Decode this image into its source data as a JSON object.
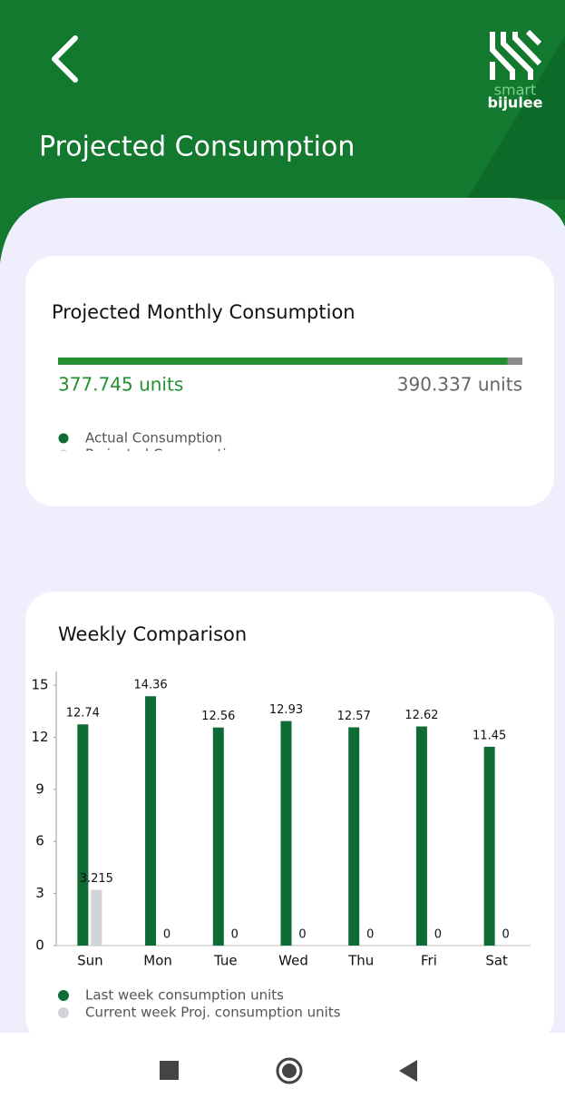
{
  "header": {
    "title": "Projected Consumption",
    "logo": [
      "smart",
      "bijulee"
    ]
  },
  "monthly": {
    "title": "Projected Monthly Consumption",
    "values": [
      377.745,
      390.337
    ],
    "value_labels": [
      "377.745 units",
      "390.337 units"
    ],
    "colors": [
      "#23902f",
      "#8a8a8a"
    ],
    "legend": [
      "Actual Consumption",
      "Projected Consumption"
    ],
    "legend_colors": [
      "#0e6b35",
      "#cfcfd6"
    ]
  },
  "chart_data": {
    "type": "bar",
    "title": "Weekly Comparison",
    "categories": [
      "Sun",
      "Mon",
      "Tue",
      "Wed",
      "Thu",
      "Fri",
      "Sat"
    ],
    "series": [
      {
        "name": "Last week consumption units",
        "color": "#0e6b35",
        "values": [
          12.74,
          14.36,
          12.56,
          12.93,
          12.57,
          12.62,
          11.45
        ]
      },
      {
        "name": "Current week Proj. consumption units",
        "color": "#d3d3da",
        "values": [
          3.215,
          0,
          0,
          0,
          0,
          0,
          0
        ]
      }
    ],
    "ylim": [
      0,
      15
    ],
    "yticks": [
      0,
      3,
      6,
      9,
      12,
      15
    ]
  }
}
